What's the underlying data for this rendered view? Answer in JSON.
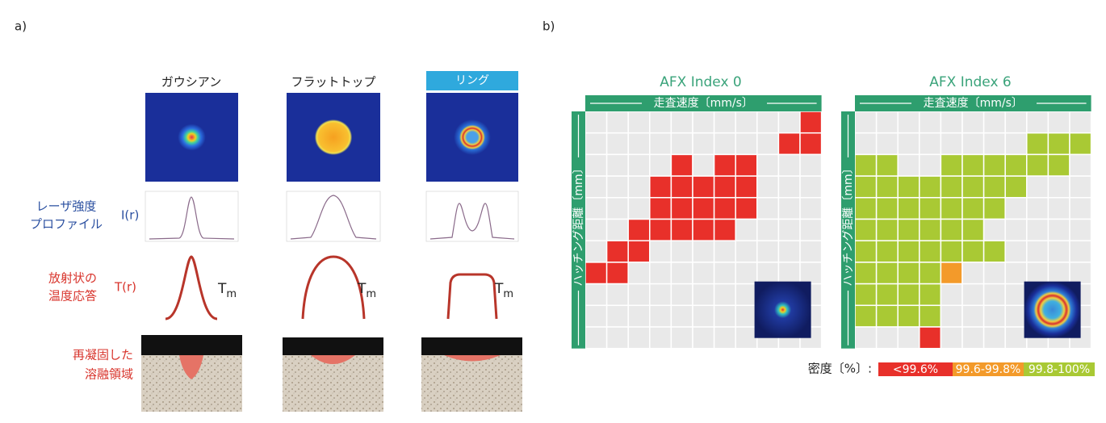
{
  "panel_a": {
    "label": "a)",
    "columns": [
      "ガウシアン",
      "フラットトップ",
      "リング"
    ],
    "rows": [
      {
        "label": [
          "レーザ強度",
          "プロファイル"
        ],
        "symbol": "I(r)"
      },
      {
        "label": [
          "放射状の",
          "温度応答"
        ],
        "symbol": "T(r)"
      },
      {
        "label": [
          "再凝固した",
          "溶融領域"
        ]
      }
    ],
    "melt_temperature": {
      "base": "T",
      "sub": "m"
    }
  },
  "panel_b": {
    "label": "b)",
    "maps": [
      {
        "title": "AFX Index 0",
        "x_axis": "走査速度〔mm/s〕",
        "y_axis": "ハッチング距離〔mm〕"
      },
      {
        "title": "AFX Index 6",
        "x_axis": "走査速度〔mm/s〕",
        "y_axis": "ハッチング距離〔mm〕"
      }
    ],
    "legend": {
      "title": "密度〔%〕:",
      "items": [
        "<99.6%",
        "99.6-99.8%",
        "99.8-100%"
      ]
    }
  }
}
